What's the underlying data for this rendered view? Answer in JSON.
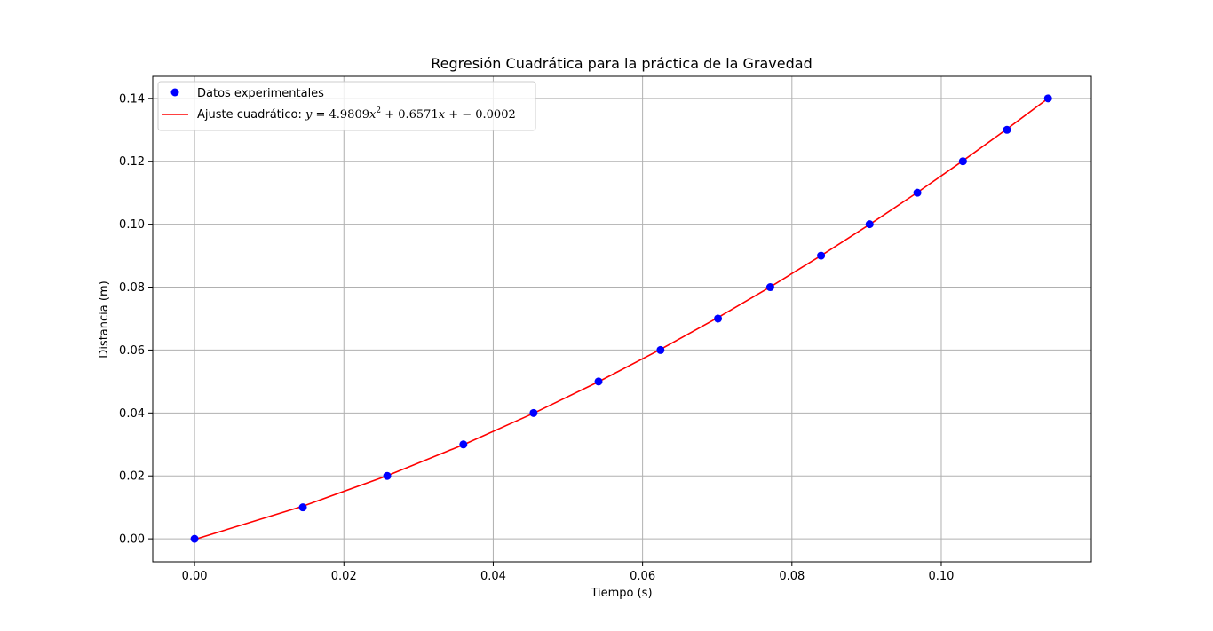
{
  "chart_data": {
    "type": "scatter",
    "title": "Regresión Cuadrática para la práctica de la Gravedad",
    "xlabel": "Tiempo (s)",
    "ylabel": "Distancia (m)",
    "xlim": [
      -0.0056,
      0.1201
    ],
    "ylim": [
      -0.0073,
      0.147
    ],
    "x_ticks": [
      "0.00",
      "0.02",
      "0.04",
      "0.06",
      "0.08",
      "0.10"
    ],
    "y_ticks": [
      "0.00",
      "0.02",
      "0.04",
      "0.06",
      "0.08",
      "0.10",
      "0.12",
      "0.14"
    ],
    "grid": true,
    "legend_position": "upper-left",
    "series": [
      {
        "name": "Datos experimentales",
        "kind": "scatter",
        "color": "#0000ff",
        "x": [
          0.0,
          0.0145,
          0.0258,
          0.036,
          0.0454,
          0.0541,
          0.0624,
          0.0701,
          0.0771,
          0.0839,
          0.0904,
          0.0968,
          0.1029,
          0.1088,
          0.1143
        ],
        "y": [
          0.0,
          0.01,
          0.02,
          0.03,
          0.04,
          0.05,
          0.06,
          0.07,
          0.08,
          0.09,
          0.1,
          0.11,
          0.12,
          0.13,
          0.14
        ]
      },
      {
        "name": "Ajuste cuadrático: ",
        "equation": {
          "lhs": "y",
          "eq": " = 4.9809",
          "var": "x",
          "sup": "2",
          "rest1": " + 0.6571",
          "var2": "x",
          "rest2": " + − 0.0002"
        },
        "kind": "line",
        "color": "#ff0000",
        "coefficients": {
          "a": 4.9809,
          "b": 0.6571,
          "c": -0.0002
        },
        "x": [
          0.0,
          0.0145,
          0.0258,
          0.036,
          0.0454,
          0.0541,
          0.0624,
          0.0701,
          0.0771,
          0.0839,
          0.0904,
          0.0968,
          0.1029,
          0.1088,
          0.1143
        ]
      }
    ]
  }
}
